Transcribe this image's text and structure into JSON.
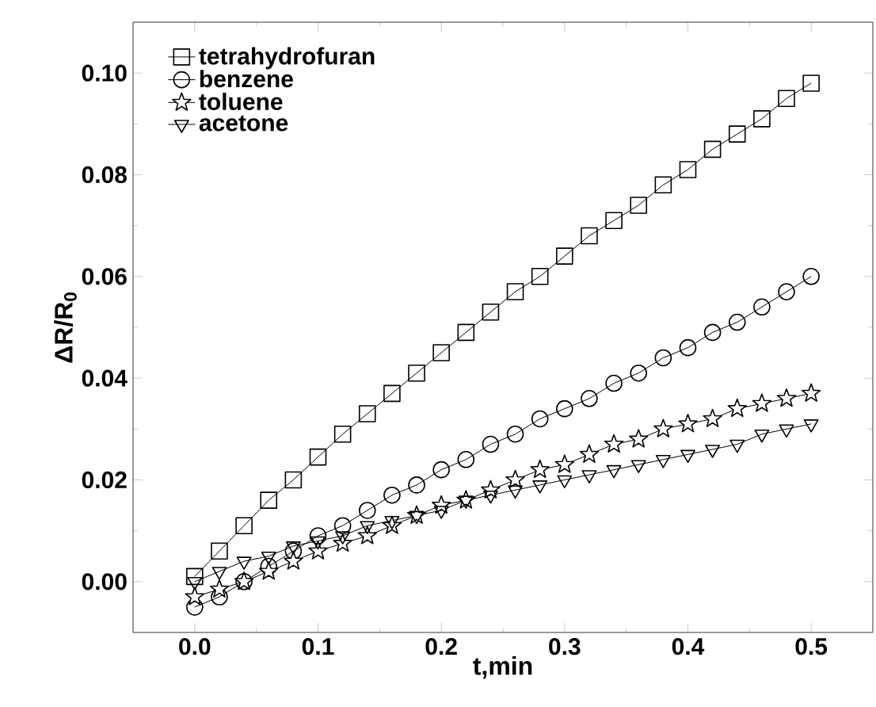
{
  "chart_data": {
    "type": "line",
    "xlabel": "t,min",
    "ylabel": "ΔR/R$_{0}$",
    "x": [
      0,
      0.02,
      0.04,
      0.06,
      0.08,
      0.1,
      0.12,
      0.14,
      0.16,
      0.18,
      0.2,
      0.22,
      0.24,
      0.26,
      0.28,
      0.3,
      0.32,
      0.34,
      0.36,
      0.38,
      0.4,
      0.42,
      0.44,
      0.46,
      0.48,
      0.5
    ],
    "series": [
      {
        "name": "tetrahydrofuran",
        "color": "#000000",
        "marker": "square",
        "values": [
          0.001,
          0.006,
          0.011,
          0.016,
          0.02,
          0.0245,
          0.029,
          0.033,
          0.037,
          0.041,
          0.045,
          0.049,
          0.053,
          0.057,
          0.06,
          0.064,
          0.068,
          0.071,
          0.074,
          0.078,
          0.081,
          0.085,
          0.088,
          0.091,
          0.095,
          0.098
        ]
      },
      {
        "name": "benzene",
        "color": "#000000",
        "marker": "circle",
        "values": [
          -0.005,
          -0.003,
          0.0,
          0.003,
          0.006,
          0.009,
          0.011,
          0.014,
          0.017,
          0.019,
          0.022,
          0.024,
          0.027,
          0.029,
          0.032,
          0.034,
          0.036,
          0.039,
          0.041,
          0.044,
          0.046,
          0.049,
          0.051,
          0.054,
          0.057,
          0.06
        ]
      },
      {
        "name": "toluene",
        "color": "#000000",
        "marker": "star",
        "values": [
          -0.003,
          -0.0015,
          0.0,
          0.002,
          0.004,
          0.006,
          0.0075,
          0.009,
          0.011,
          0.013,
          0.015,
          0.016,
          0.018,
          0.02,
          0.022,
          0.023,
          0.025,
          0.027,
          0.028,
          0.03,
          0.031,
          0.032,
          0.034,
          0.035,
          0.036,
          0.037
        ]
      },
      {
        "name": "acetone",
        "color": "#000000",
        "marker": "triangle",
        "values": [
          0.0,
          0.002,
          0.004,
          0.005,
          0.007,
          0.008,
          0.009,
          0.011,
          0.012,
          0.013,
          0.014,
          0.016,
          0.017,
          0.018,
          0.019,
          0.02,
          0.021,
          0.022,
          0.023,
          0.024,
          0.025,
          0.026,
          0.027,
          0.029,
          0.03,
          0.031
        ]
      }
    ],
    "xlim": [
      -0.05,
      0.55
    ],
    "xticks": [
      {
        "value": 0,
        "label": "0.0"
      },
      {
        "value": 0.1,
        "label": "0.1"
      },
      {
        "value": 0.2,
        "label": "0.2"
      },
      {
        "value": 0.3,
        "label": "0.3"
      },
      {
        "value": 0.4,
        "label": "0.4"
      },
      {
        "value": 0.5,
        "label": "0.5"
      }
    ],
    "ylim": [
      -0.01,
      0.11
    ],
    "yticks": [
      {
        "value": 0,
        "label": "0.00"
      },
      {
        "value": 0.02,
        "label": "0.02"
      },
      {
        "value": 0.04,
        "label": "0.04"
      },
      {
        "value": 0.06,
        "label": "0.06"
      },
      {
        "value": 0.08,
        "label": "0.08"
      },
      {
        "value": 0.1,
        "label": "0.10"
      }
    ],
    "legend": "top left",
    "grid": false,
    "line_style": "solid"
  }
}
